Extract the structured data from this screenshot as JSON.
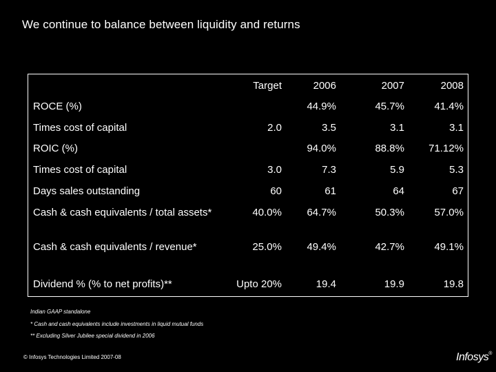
{
  "title": "We continue to balance between liquidity and returns",
  "table": {
    "headers": [
      "Target",
      "2006",
      "2007",
      "2008"
    ],
    "rows": [
      {
        "label": "ROCE (%)",
        "values": [
          "",
          "44.9%",
          "45.7%",
          "41.4%"
        ]
      },
      {
        "label": "Times cost of capital",
        "values": [
          "2.0",
          "3.5",
          "3.1",
          "3.1"
        ]
      },
      {
        "label": "ROIC (%)",
        "values": [
          "",
          "94.0%",
          "88.8%",
          "71.12%"
        ]
      },
      {
        "label": "Times cost of capital",
        "values": [
          "3.0",
          "7.3",
          "5.9",
          "5.3"
        ]
      },
      {
        "label": "Days sales outstanding",
        "values": [
          "60",
          "61",
          "64",
          "67"
        ]
      },
      {
        "label": "Cash & cash equivalents / total assets*",
        "values": [
          "40.0%",
          "64.7%",
          "50.3%",
          "57.0%"
        ]
      },
      {
        "label": "Cash & cash equivalents / revenue*",
        "values": [
          "25.0%",
          "49.4%",
          "42.7%",
          "49.1%"
        ]
      },
      {
        "label": "Dividend % (% to net profits)**",
        "values": [
          "Upto 20%",
          "19.4",
          "19.9",
          "19.8"
        ]
      }
    ]
  },
  "notes": [
    "Indian GAAP standalone",
    "* Cash and cash equivalents include investments in liquid mutual funds",
    "** Excluding Silver Jubilee special dividend in 2006"
  ],
  "footer": "© Infosys Technologies Limited 2007-08",
  "logo": {
    "text": "Infosys",
    "mark": "®"
  }
}
